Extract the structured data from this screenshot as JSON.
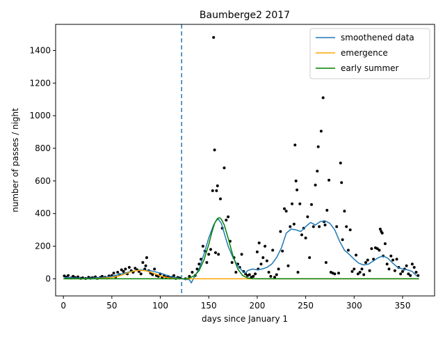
{
  "chart_data": {
    "type": "line",
    "title": "Baumberge2 2017",
    "xlabel": "days since January 1",
    "ylabel": "number of passes / night",
    "xlim": [
      -8,
      383
    ],
    "ylim": [
      -105,
      1560
    ],
    "xticks": [
      0,
      50,
      100,
      150,
      200,
      250,
      300,
      350
    ],
    "yticks": [
      0,
      200,
      400,
      600,
      800,
      1000,
      1200,
      1400
    ],
    "grid": false,
    "legend_position": "top-right",
    "vline": {
      "x": 122,
      "style": "dashed",
      "color": "#1f77b4"
    },
    "series": [
      {
        "name": "smoothened data",
        "color": "#1f77b4",
        "x": [
          1,
          10,
          20,
          30,
          40,
          50,
          60,
          70,
          80,
          90,
          100,
          110,
          115,
          120,
          125,
          130,
          132,
          135,
          140,
          145,
          150,
          155,
          158,
          160,
          163,
          166,
          170,
          175,
          180,
          185,
          188,
          190,
          195,
          200,
          205,
          210,
          215,
          220,
          225,
          230,
          235,
          240,
          245,
          250,
          255,
          260,
          265,
          270,
          275,
          280,
          285,
          290,
          295,
          300,
          305,
          310,
          315,
          320,
          325,
          330,
          335,
          340,
          345,
          350,
          355,
          360,
          365
        ],
        "y": [
          8,
          6,
          3,
          5,
          8,
          15,
          30,
          45,
          55,
          50,
          35,
          15,
          8,
          3,
          -3,
          -5,
          -25,
          10,
          60,
          150,
          250,
          330,
          360,
          365,
          340,
          280,
          200,
          130,
          80,
          45,
          35,
          50,
          60,
          55,
          60,
          70,
          90,
          130,
          190,
          280,
          305,
          300,
          290,
          320,
          345,
          330,
          350,
          355,
          340,
          300,
          230,
          175,
          150,
          120,
          95,
          85,
          90,
          110,
          130,
          140,
          125,
          95,
          70,
          60,
          55,
          45,
          15
        ]
      },
      {
        "name": "emergence",
        "color": "#ffa500",
        "x": [
          0,
          10,
          20,
          30,
          40,
          50,
          55,
          60,
          65,
          70,
          75,
          80,
          85,
          90,
          95,
          100,
          105,
          110,
          115,
          120,
          130,
          140,
          150,
          160,
          170,
          180,
          190,
          200,
          250,
          300,
          367
        ],
        "y": [
          0,
          0,
          0,
          1,
          3,
          8,
          14,
          22,
          33,
          43,
          50,
          52,
          49,
          41,
          30,
          19,
          10,
          5,
          2,
          1,
          0,
          0,
          0,
          0,
          0,
          0,
          0,
          0,
          0,
          0,
          0
        ]
      },
      {
        "name": "early summer",
        "color": "#008000",
        "x": [
          0,
          50,
          100,
          120,
          125,
          130,
          135,
          140,
          145,
          150,
          153,
          156,
          159,
          161,
          163,
          166,
          170,
          175,
          180,
          185,
          190,
          195,
          200,
          250,
          300,
          367
        ],
        "y": [
          0,
          0,
          0,
          0,
          1,
          5,
          18,
          50,
          115,
          210,
          280,
          340,
          370,
          375,
          365,
          330,
          250,
          140,
          60,
          20,
          5,
          1,
          0,
          0,
          0,
          0
        ]
      }
    ],
    "points": {
      "color": "#000000",
      "x": [
        1,
        3,
        5,
        8,
        10,
        12,
        15,
        18,
        20,
        23,
        26,
        28,
        30,
        33,
        35,
        38,
        40,
        43,
        45,
        47,
        50,
        52,
        54,
        56,
        58,
        60,
        62,
        64,
        66,
        68,
        70,
        72,
        74,
        76,
        78,
        80,
        82,
        84,
        85,
        86,
        88,
        90,
        92,
        94,
        96,
        98,
        100,
        102,
        104,
        106,
        108,
        110,
        112,
        114,
        116,
        118,
        120,
        126,
        130,
        133,
        136,
        138,
        140,
        142,
        144,
        146,
        148,
        150,
        152,
        154,
        155,
        156,
        157,
        158,
        159,
        160,
        162,
        164,
        166,
        168,
        170,
        172,
        174,
        176,
        178,
        180,
        182,
        184,
        186,
        188,
        190,
        192,
        194,
        196,
        198,
        200,
        201,
        202,
        204,
        206,
        208,
        210,
        212,
        214,
        216,
        218,
        220,
        222,
        224,
        226,
        228,
        230,
        232,
        234,
        236,
        238,
        239,
        240,
        241,
        242,
        244,
        246,
        248,
        250,
        252,
        254,
        256,
        258,
        260,
        262,
        263,
        264,
        266,
        268,
        269,
        270,
        271,
        272,
        274,
        276,
        278,
        280,
        282,
        284,
        286,
        287,
        288,
        290,
        292,
        294,
        296,
        298,
        300,
        302,
        304,
        306,
        308,
        310,
        312,
        314,
        316,
        318,
        320,
        322,
        324,
        326,
        327,
        328,
        329,
        330,
        332,
        334,
        336,
        338,
        340,
        342,
        344,
        346,
        348,
        350,
        352,
        354,
        356,
        358,
        360,
        362,
        364,
        366
      ],
      "y": [
        18,
        10,
        20,
        5,
        15,
        8,
        12,
        3,
        6,
        2,
        9,
        4,
        7,
        12,
        3,
        8,
        15,
        10,
        5,
        18,
        20,
        35,
        12,
        40,
        25,
        55,
        45,
        60,
        30,
        70,
        50,
        40,
        65,
        55,
        45,
        30,
        100,
        60,
        80,
        130,
        50,
        35,
        25,
        60,
        20,
        15,
        30,
        10,
        20,
        8,
        15,
        5,
        10,
        20,
        3,
        8,
        5,
        0,
        15,
        40,
        20,
        60,
        90,
        120,
        200,
        170,
        100,
        150,
        180,
        540,
        1480,
        790,
        160,
        540,
        570,
        150,
        490,
        310,
        680,
        360,
        380,
        230,
        100,
        130,
        40,
        90,
        70,
        150,
        45,
        30,
        20,
        25,
        10,
        15,
        30,
        165,
        60,
        220,
        90,
        130,
        200,
        110,
        40,
        15,
        175,
        10,
        25,
        60,
        290,
        170,
        430,
        415,
        80,
        320,
        460,
        335,
        820,
        600,
        545,
        40,
        460,
        270,
        310,
        250,
        380,
        130,
        455,
        320,
        575,
        660,
        810,
        320,
        905,
        1110,
        350,
        330,
        100,
        420,
        605,
        40,
        35,
        30,
        320,
        35,
        710,
        590,
        240,
        415,
        320,
        175,
        300,
        45,
        60,
        145,
        30,
        40,
        60,
        25,
        100,
        115,
        50,
        185,
        120,
        190,
        185,
        175,
        305,
        290,
        280,
        140,
        215,
        90,
        60,
        140,
        115,
        50,
        120,
        70,
        30,
        45,
        60,
        80,
        30,
        20,
        90,
        70,
        40,
        20
      ]
    }
  }
}
